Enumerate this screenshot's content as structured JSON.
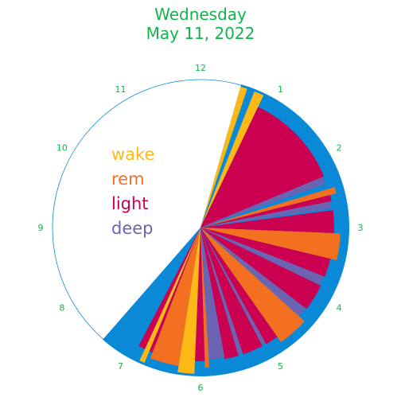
{
  "title": {
    "day": "Wednesday",
    "date": "May 11, 2022"
  },
  "colors": {
    "title": "#12b34a",
    "hour_labels": "#12b34a",
    "night_ring": "#0a8ad6",
    "clock_outline": "#0a8ad6",
    "wake": "#fbb817",
    "rem": "#f37021",
    "light": "#cc0051",
    "deep": "#6b64b2"
  },
  "chart_data": {
    "type": "radial-hypnogram",
    "clock_hours": [
      "12",
      "1",
      "2",
      "3",
      "4",
      "5",
      "6",
      "7",
      "8",
      "9",
      "10",
      "11"
    ],
    "legend": [
      {
        "stage": "wake",
        "label": "wake"
      },
      {
        "stage": "rem",
        "label": "rem"
      },
      {
        "stage": "light",
        "label": "light"
      },
      {
        "stage": "deep",
        "label": "deep"
      }
    ],
    "stage_levels": {
      "deep": 1,
      "light": 2,
      "rem": 3,
      "wake": 4
    },
    "night_window_hours": [
      0.53,
      7.37
    ],
    "segments": [
      {
        "stage": "wake",
        "start": 0.53,
        "end": 0.62
      },
      {
        "stage": "wake",
        "start": 0.72,
        "end": 0.85
      },
      {
        "stage": "light",
        "start": 0.85,
        "end": 2.25
      },
      {
        "stage": "deep",
        "start": 2.25,
        "end": 2.36
      },
      {
        "stage": "rem",
        "start": 2.44,
        "end": 2.53
      },
      {
        "stage": "light",
        "start": 2.53,
        "end": 2.62
      },
      {
        "stage": "deep",
        "start": 2.62,
        "end": 2.72
      },
      {
        "stage": "light",
        "start": 2.75,
        "end": 3.08
      },
      {
        "stage": "rem",
        "start": 3.08,
        "end": 3.45
      },
      {
        "stage": "light",
        "start": 3.45,
        "end": 3.72
      },
      {
        "stage": "deep",
        "start": 3.72,
        "end": 3.86
      },
      {
        "stage": "light",
        "start": 3.86,
        "end": 4.25
      },
      {
        "stage": "deep",
        "start": 4.25,
        "end": 4.4
      },
      {
        "stage": "rem",
        "start": 4.4,
        "end": 4.83
      },
      {
        "stage": "light",
        "start": 4.83,
        "end": 5.02
      },
      {
        "stage": "deep",
        "start": 5.02,
        "end": 5.08
      },
      {
        "stage": "light",
        "start": 5.08,
        "end": 5.38
      },
      {
        "stage": "deep",
        "start": 5.38,
        "end": 5.45
      },
      {
        "stage": "light",
        "start": 5.45,
        "end": 5.65
      },
      {
        "stage": "deep",
        "start": 5.65,
        "end": 5.88
      },
      {
        "stage": "rem",
        "start": 5.88,
        "end": 5.94
      },
      {
        "stage": "light",
        "start": 5.94,
        "end": 6.08
      },
      {
        "stage": "wake",
        "start": 6.08,
        "end": 6.3
      },
      {
        "stage": "rem",
        "start": 6.3,
        "end": 6.7
      },
      {
        "stage": "light",
        "start": 6.7,
        "end": 6.75
      },
      {
        "stage": "wake",
        "start": 6.75,
        "end": 6.82
      },
      {
        "stage": "light",
        "start": 6.82,
        "end": 6.92
      }
    ]
  }
}
